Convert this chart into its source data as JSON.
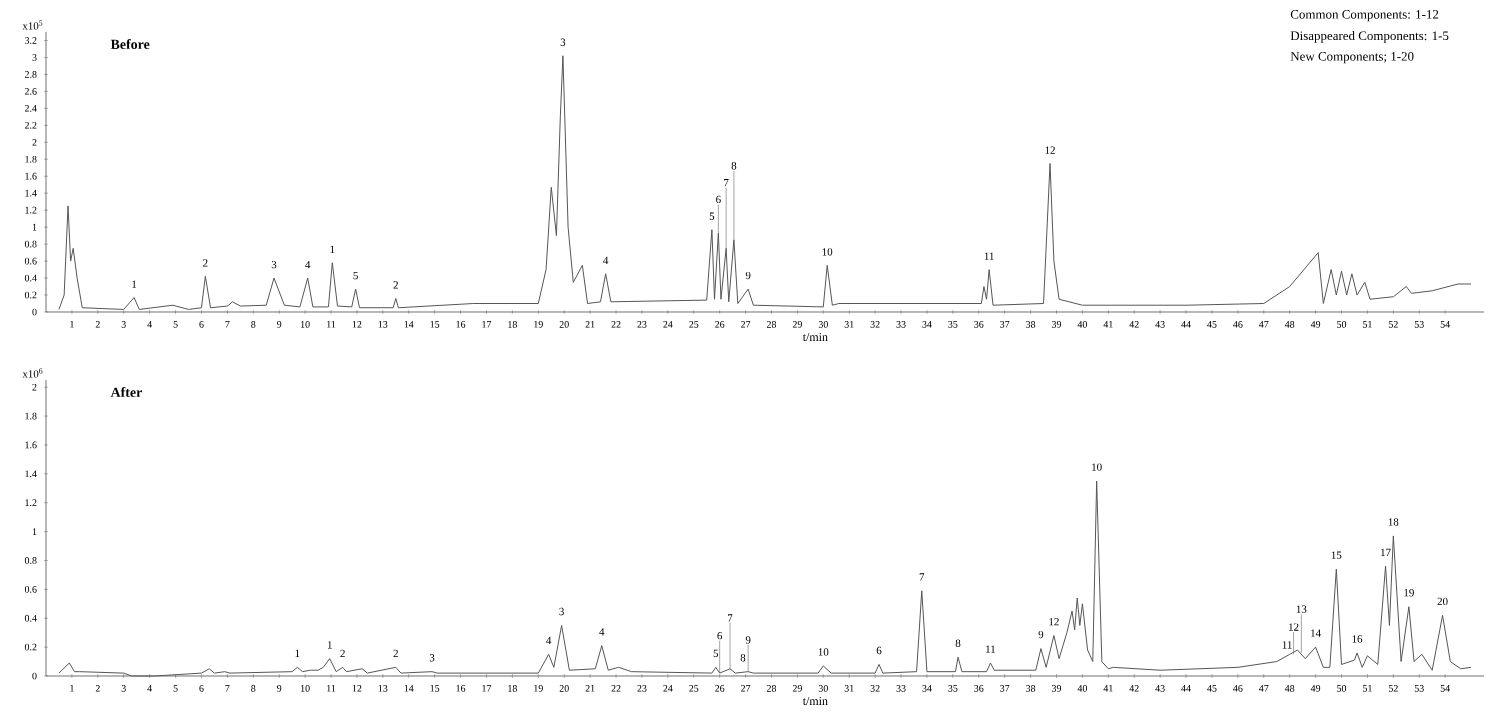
{
  "chart_data": [
    {
      "type": "line",
      "title": "Before",
      "xlabel": "t/min",
      "ylabel": "x10$^{5}$",
      "color": "#555555",
      "xlim": [
        0,
        55.5
      ],
      "ylim": [
        0,
        3.3
      ],
      "xticks": [
        1,
        2,
        3,
        4,
        5,
        6,
        7,
        8,
        9,
        10,
        11,
        12,
        13,
        14,
        15,
        16,
        17,
        18,
        19,
        20,
        21,
        22,
        23,
        24,
        25,
        26,
        27,
        28,
        29,
        30,
        31,
        32,
        33,
        34,
        35,
        36,
        37,
        38,
        39,
        40,
        41,
        42,
        43,
        44,
        45,
        46,
        47,
        48,
        49,
        50,
        51,
        52,
        53,
        54
      ],
      "yticks": [
        0,
        0.2,
        0.4,
        0.6,
        0.8,
        1,
        1.2,
        1.4,
        1.6,
        1.8,
        2,
        2.2,
        2.4,
        2.6,
        2.8,
        3,
        3.2
      ],
      "x": [
        0.5,
        0.7,
        0.85,
        0.95,
        1.05,
        1.2,
        1.4,
        3.0,
        3.4,
        3.6,
        4.9,
        5.5,
        6.0,
        6.15,
        6.35,
        7.0,
        7.2,
        7.5,
        8.5,
        8.8,
        9.2,
        9.8,
        10.1,
        10.3,
        10.9,
        11.05,
        11.25,
        11.8,
        11.95,
        12.1,
        13.4,
        13.5,
        13.6,
        16.5,
        19.0,
        19.3,
        19.5,
        19.7,
        19.85,
        19.95,
        20.15,
        20.35,
        20.7,
        20.9,
        21.4,
        21.6,
        21.8,
        25.5,
        25.7,
        25.8,
        25.95,
        26.05,
        26.25,
        26.35,
        26.55,
        26.7,
        27.1,
        27.3,
        30.0,
        30.15,
        30.35,
        30.6,
        36.1,
        36.2,
        36.3,
        36.4,
        36.55,
        38.5,
        38.75,
        38.9,
        39.1,
        40,
        44,
        47,
        48,
        49.1,
        49.3,
        49.6,
        49.8,
        50,
        50.2,
        50.4,
        50.6,
        50.9,
        51.1,
        52,
        52.5,
        52.7,
        53.5,
        54.5,
        55
      ],
      "values": [
        0.03,
        0.2,
        1.25,
        0.6,
        0.75,
        0.4,
        0.05,
        0.03,
        0.17,
        0.03,
        0.08,
        0.03,
        0.05,
        0.42,
        0.05,
        0.07,
        0.12,
        0.07,
        0.08,
        0.4,
        0.08,
        0.06,
        0.4,
        0.06,
        0.06,
        0.58,
        0.07,
        0.06,
        0.27,
        0.05,
        0.05,
        0.16,
        0.05,
        0.1,
        0.1,
        0.5,
        1.47,
        0.9,
        2.3,
        3.02,
        1.0,
        0.35,
        0.55,
        0.1,
        0.12,
        0.45,
        0.12,
        0.14,
        0.97,
        0.15,
        0.93,
        0.15,
        0.75,
        0.12,
        0.85,
        0.1,
        0.27,
        0.08,
        0.06,
        0.55,
        0.08,
        0.1,
        0.1,
        0.3,
        0.15,
        0.5,
        0.08,
        0.1,
        1.75,
        0.6,
        0.15,
        0.08,
        0.08,
        0.1,
        0.3,
        0.7,
        0.1,
        0.5,
        0.2,
        0.48,
        0.2,
        0.45,
        0.2,
        0.35,
        0.15,
        0.18,
        0.3,
        0.22,
        0.25,
        0.33,
        0.33
      ],
      "annotations": [
        "Common Components: 1-12",
        "Disappeared Components: 1-5",
        "New Components; 1-20",
        {
          "text": "1",
          "x": 3.4,
          "y": 0.17
        },
        {
          "text": "2",
          "x": 6.15,
          "y": 0.42
        },
        {
          "text": "3",
          "x": 8.8,
          "y": 0.4
        },
        {
          "text": "4",
          "x": 10.1,
          "y": 0.4
        },
        {
          "text": "1",
          "x": 11.05,
          "y": 0.58
        },
        {
          "text": "5",
          "x": 11.95,
          "y": 0.27
        },
        {
          "text": "2",
          "x": 13.5,
          "y": 0.16
        },
        {
          "text": "3",
          "x": 19.95,
          "y": 3.02
        },
        {
          "text": "4",
          "x": 21.6,
          "y": 0.45
        },
        {
          "text": "5",
          "x": 25.7,
          "y": 0.97
        },
        {
          "text": "6",
          "x": 25.95,
          "y": 0.93
        },
        {
          "text": "7",
          "x": 26.25,
          "y": 0.75
        },
        {
          "text": "8",
          "x": 26.55,
          "y": 0.85
        },
        {
          "text": "9",
          "x": 27.1,
          "y": 0.27
        },
        {
          "text": "10",
          "x": 30.15,
          "y": 0.55
        },
        {
          "text": "11",
          "x": 36.4,
          "y": 0.5
        },
        {
          "text": "12",
          "x": 38.75,
          "y": 1.75
        }
      ]
    },
    {
      "type": "line",
      "title": "After",
      "xlabel": "t/min",
      "ylabel": "x10$^{6}$",
      "color": "#555555",
      "xlim": [
        0,
        55.5
      ],
      "ylim": [
        0,
        2.05
      ],
      "xticks": [
        1,
        2,
        3,
        4,
        5,
        6,
        7,
        8,
        9,
        10,
        11,
        12,
        13,
        14,
        15,
        16,
        17,
        18,
        19,
        20,
        21,
        22,
        23,
        24,
        25,
        26,
        27,
        28,
        29,
        30,
        31,
        32,
        33,
        34,
        35,
        36,
        37,
        38,
        39,
        40,
        41,
        42,
        43,
        44,
        45,
        46,
        47,
        48,
        49,
        50,
        51,
        52,
        53,
        54
      ],
      "yticks": [
        0,
        0.2,
        0.4,
        0.6,
        0.8,
        1,
        1.2,
        1.4,
        1.6,
        1.8,
        2
      ],
      "x": [
        0.5,
        0.9,
        1.1,
        1.3,
        3,
        3.3,
        4.2,
        6.0,
        6.3,
        6.5,
        6.9,
        7.1,
        9.5,
        9.7,
        9.9,
        10.2,
        10.5,
        10.7,
        10.95,
        11.2,
        11.45,
        11.6,
        12.2,
        12.4,
        13.5,
        13.7,
        14.9,
        15.1,
        19.0,
        19.4,
        19.6,
        19.9,
        20.2,
        21.2,
        21.45,
        21.7,
        22.1,
        22.6,
        25.7,
        25.85,
        26.0,
        26.4,
        26.6,
        27.1,
        27.3,
        29.8,
        30.0,
        30.3,
        32.0,
        32.15,
        32.3,
        33.6,
        33.8,
        34.0,
        35.1,
        35.2,
        35.35,
        36.3,
        36.45,
        36.6,
        38.2,
        38.4,
        38.6,
        38.9,
        39.1,
        39.4,
        39.6,
        39.7,
        39.8,
        39.9,
        40.0,
        40.2,
        40.4,
        40.55,
        40.75,
        41.0,
        41.2,
        43,
        46,
        47.5,
        48.0,
        48.3,
        48.6,
        49.0,
        49.3,
        49.55,
        49.8,
        50.0,
        50.5,
        50.6,
        50.8,
        51.0,
        51.4,
        51.7,
        51.85,
        52.0,
        52.3,
        52.6,
        52.8,
        53.1,
        53.5,
        53.9,
        54.2,
        54.6,
        55
      ],
      "values": [
        0.02,
        0.09,
        0.03,
        0.03,
        0.02,
        0.0,
        0.0,
        0.02,
        0.05,
        0.02,
        0.03,
        0.02,
        0.03,
        0.06,
        0.03,
        0.04,
        0.04,
        0.06,
        0.12,
        0.03,
        0.06,
        0.03,
        0.05,
        0.02,
        0.06,
        0.02,
        0.03,
        0.02,
        0.02,
        0.15,
        0.06,
        0.35,
        0.04,
        0.05,
        0.21,
        0.04,
        0.06,
        0.03,
        0.02,
        0.06,
        0.02,
        0.05,
        0.02,
        0.03,
        0.02,
        0.02,
        0.07,
        0.02,
        0.02,
        0.08,
        0.02,
        0.03,
        0.59,
        0.03,
        0.03,
        0.13,
        0.03,
        0.03,
        0.09,
        0.04,
        0.04,
        0.19,
        0.06,
        0.28,
        0.12,
        0.3,
        0.45,
        0.32,
        0.54,
        0.35,
        0.5,
        0.18,
        0.1,
        1.35,
        0.1,
        0.05,
        0.06,
        0.04,
        0.06,
        0.1,
        0.15,
        0.18,
        0.12,
        0.2,
        0.06,
        0.06,
        0.74,
        0.08,
        0.11,
        0.16,
        0.06,
        0.14,
        0.08,
        0.76,
        0.35,
        0.97,
        0.1,
        0.48,
        0.1,
        0.15,
        0.04,
        0.42,
        0.1,
        0.05,
        0.06
      ],
      "annotations": [
        {
          "text": "1",
          "x": 9.7,
          "y": 0.06
        },
        {
          "text": "1",
          "x": 10.95,
          "y": 0.12
        },
        {
          "text": "2",
          "x": 11.45,
          "y": 0.06
        },
        {
          "text": "2",
          "x": 13.5,
          "y": 0.06
        },
        {
          "text": "3",
          "x": 14.9,
          "y": 0.03
        },
        {
          "text": "4",
          "x": 19.4,
          "y": 0.15
        },
        {
          "text": "3",
          "x": 19.9,
          "y": 0.35
        },
        {
          "text": "4",
          "x": 21.45,
          "y": 0.21
        },
        {
          "text": "5",
          "x": 25.85,
          "y": 0.06
        },
        {
          "text": "6",
          "x": 26.0,
          "y": 0.02
        },
        {
          "text": "7",
          "x": 26.4,
          "y": 0.05
        },
        {
          "text": "8",
          "x": 26.9,
          "y": 0.03
        },
        {
          "text": "9",
          "x": 27.1,
          "y": 0.03
        },
        {
          "text": "10",
          "x": 30.0,
          "y": 0.07
        },
        {
          "text": "6",
          "x": 32.15,
          "y": 0.08
        },
        {
          "text": "7",
          "x": 33.8,
          "y": 0.59
        },
        {
          "text": "8",
          "x": 35.2,
          "y": 0.13
        },
        {
          "text": "11",
          "x": 36.45,
          "y": 0.09
        },
        {
          "text": "9",
          "x": 38.4,
          "y": 0.19
        },
        {
          "text": "12",
          "x": 38.9,
          "y": 0.28
        },
        {
          "text": "10",
          "x": 40.55,
          "y": 1.35
        },
        {
          "text": "11",
          "x": 47.9,
          "y": 0.12
        },
        {
          "text": "12",
          "x": 48.15,
          "y": 0.15
        },
        {
          "text": "13",
          "x": 48.45,
          "y": 0.16
        },
        {
          "text": "14",
          "x": 49.0,
          "y": 0.2
        },
        {
          "text": "15",
          "x": 49.8,
          "y": 0.74
        },
        {
          "text": "16",
          "x": 50.6,
          "y": 0.16
        },
        {
          "text": "17",
          "x": 51.7,
          "y": 0.76
        },
        {
          "text": "18",
          "x": 52.0,
          "y": 0.97
        },
        {
          "text": "19",
          "x": 52.6,
          "y": 0.48
        },
        {
          "text": "20",
          "x": 53.9,
          "y": 0.42
        }
      ]
    }
  ]
}
